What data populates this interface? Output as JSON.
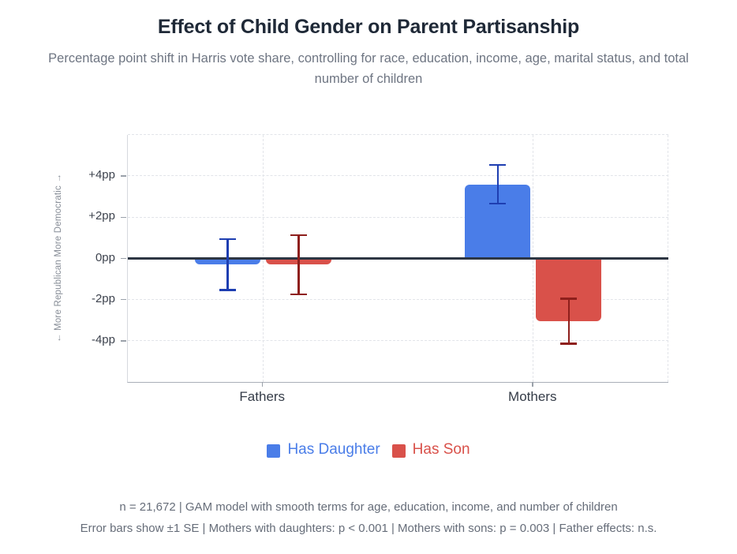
{
  "header": {
    "title": "Effect of Child Gender on Parent Partisanship",
    "subtitle": "Percentage point shift in Harris vote share, controlling for race, education, income, age, marital status, and total number of children"
  },
  "chart_data": {
    "type": "bar",
    "title": "Effect of Child Gender on Parent Partisanship",
    "categories": [
      "Fathers",
      "Mothers"
    ],
    "series": [
      {
        "name": "Has Daughter",
        "color": "#4a7de8",
        "error_color": "#1e3eb1",
        "values": [
          -0.3,
          3.6
        ],
        "se": [
          1.25,
          0.95
        ]
      },
      {
        "name": "Has Son",
        "color": "#d9514a",
        "error_color": "#8e1f1c",
        "values": [
          -0.3,
          -3.05
        ],
        "se": [
          1.45,
          1.1
        ]
      }
    ],
    "ylabel": "← More Republican More Democratic →",
    "ylim": [
      -6,
      6
    ],
    "yticks": [
      {
        "v": 4,
        "label": "+4pp"
      },
      {
        "v": 2,
        "label": "+2pp"
      },
      {
        "v": 0,
        "label": "0pp"
      },
      {
        "v": -2,
        "label": "-2pp"
      },
      {
        "v": -4,
        "label": "-4pp"
      }
    ],
    "gridlines": [
      6,
      4,
      2,
      -2,
      -4
    ],
    "grid": "dashed",
    "legend_position": "bottom",
    "error_note": "±1 SE"
  },
  "footer": {
    "line1": "n = 21,672 | GAM model with smooth terms for age, education, income, and number of children",
    "line2": "Error bars show ±1 SE | Mothers with daughters: p < 0.001 | Mothers with sons: p = 0.003 | Father effects: n.s."
  }
}
